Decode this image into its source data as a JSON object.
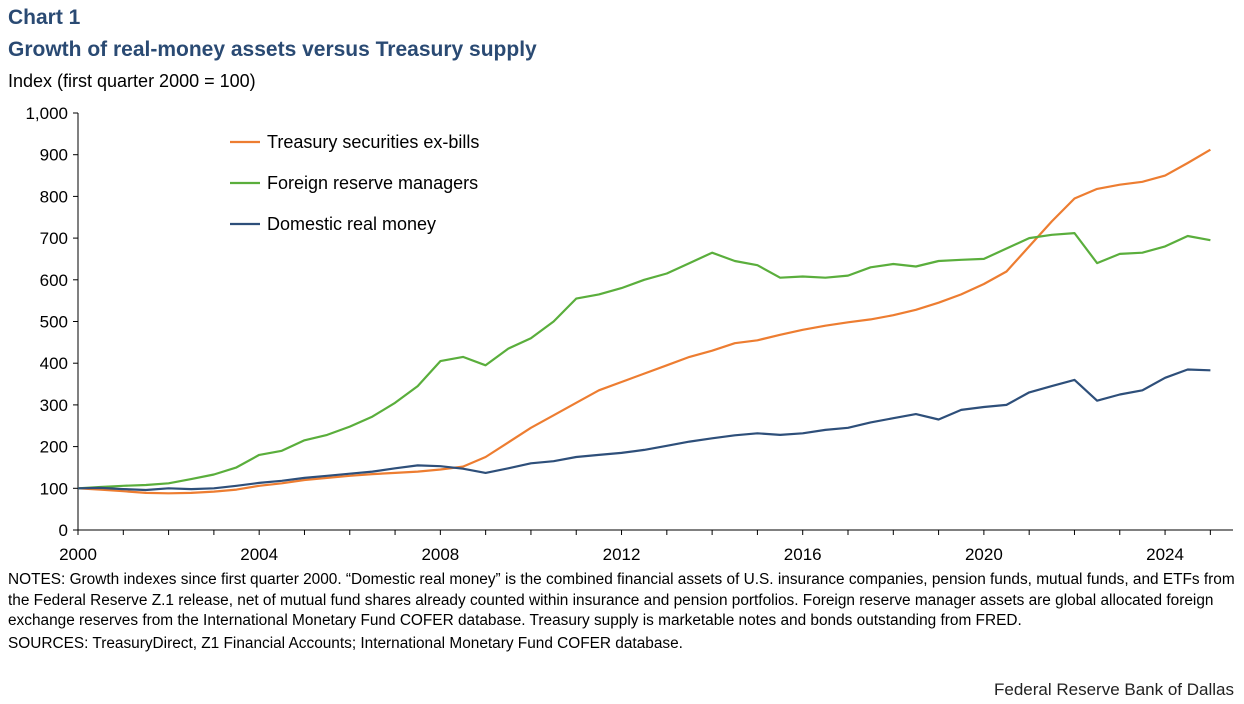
{
  "chart_number": "Chart 1",
  "title": "Growth of real-money assets versus Treasury supply",
  "unit_label": "Index (first quarter 2000 = 100)",
  "notes": "NOTES: Growth indexes since first quarter 2000. “Domestic real money” is the combined financial assets of U.S. insurance companies, pension funds, mutual funds, and ETFs from the Federal Reserve Z.1 release, net of mutual fund shares already counted within insurance and pension portfolios. Foreign reserve manager assets are global allocated foreign exchange reserves from the International Monetary Fund COFER database. Treasury supply is marketable notes and bonds outstanding from FRED.",
  "sources": "SOURCES: TreasuryDirect, Z1 Financial Accounts; International Monetary Fund COFER database.",
  "credit": "Federal Reserve Bank of Dallas",
  "chart_data": {
    "type": "line",
    "title": "Growth of real-money assets versus Treasury supply",
    "ylabel": "Index (first quarter 2000 = 100)",
    "xlim": [
      2000,
      2025.5
    ],
    "ylim": [
      0,
      1000
    ],
    "x_ticks": [
      2000,
      2004,
      2008,
      2012,
      2016,
      2020,
      2024
    ],
    "y_ticks": [
      0,
      100,
      200,
      300,
      400,
      500,
      600,
      700,
      800,
      900,
      1000
    ],
    "y_tick_labels": [
      "0",
      "100",
      "200",
      "300",
      "400",
      "500",
      "600",
      "700",
      "800",
      "900",
      "1,000"
    ],
    "grid": false,
    "legend_position": "top-left",
    "series": [
      {
        "name": "Treasury securities ex-bills",
        "color": "#ed7d31",
        "points": [
          [
            2000,
            100
          ],
          [
            2000.5,
            97
          ],
          [
            2001,
            93
          ],
          [
            2001.5,
            89
          ],
          [
            2002,
            88
          ],
          [
            2002.5,
            89
          ],
          [
            2003,
            92
          ],
          [
            2003.5,
            97
          ],
          [
            2004,
            106
          ],
          [
            2004.5,
            112
          ],
          [
            2005,
            120
          ],
          [
            2005.5,
            125
          ],
          [
            2006,
            130
          ],
          [
            2006.5,
            134
          ],
          [
            2007,
            137
          ],
          [
            2007.5,
            140
          ],
          [
            2008,
            145
          ],
          [
            2008.5,
            152
          ],
          [
            2009,
            175
          ],
          [
            2009.5,
            210
          ],
          [
            2010,
            245
          ],
          [
            2010.5,
            275
          ],
          [
            2011,
            305
          ],
          [
            2011.5,
            335
          ],
          [
            2012,
            355
          ],
          [
            2012.5,
            375
          ],
          [
            2013,
            395
          ],
          [
            2013.5,
            415
          ],
          [
            2014,
            430
          ],
          [
            2014.5,
            448
          ],
          [
            2015,
            455
          ],
          [
            2015.5,
            468
          ],
          [
            2016,
            480
          ],
          [
            2016.5,
            490
          ],
          [
            2017,
            498
          ],
          [
            2017.5,
            505
          ],
          [
            2018,
            515
          ],
          [
            2018.5,
            528
          ],
          [
            2019,
            545
          ],
          [
            2019.5,
            565
          ],
          [
            2020,
            590
          ],
          [
            2020.5,
            620
          ],
          [
            2021,
            680
          ],
          [
            2021.5,
            740
          ],
          [
            2022,
            795
          ],
          [
            2022.5,
            818
          ],
          [
            2023,
            828
          ],
          [
            2023.5,
            835
          ],
          [
            2024,
            850
          ],
          [
            2024.5,
            880
          ],
          [
            2025,
            912
          ]
        ]
      },
      {
        "name": "Foreign reserve managers",
        "color": "#5aae3c",
        "points": [
          [
            2000,
            100
          ],
          [
            2000.5,
            103
          ],
          [
            2001,
            106
          ],
          [
            2001.5,
            108
          ],
          [
            2002,
            112
          ],
          [
            2002.5,
            122
          ],
          [
            2003,
            133
          ],
          [
            2003.5,
            150
          ],
          [
            2004,
            180
          ],
          [
            2004.5,
            190
          ],
          [
            2005,
            215
          ],
          [
            2005.5,
            228
          ],
          [
            2006,
            248
          ],
          [
            2006.5,
            272
          ],
          [
            2007,
            305
          ],
          [
            2007.5,
            345
          ],
          [
            2008,
            405
          ],
          [
            2008.5,
            415
          ],
          [
            2009,
            395
          ],
          [
            2009.5,
            435
          ],
          [
            2010,
            460
          ],
          [
            2010.5,
            500
          ],
          [
            2011,
            555
          ],
          [
            2011.5,
            565
          ],
          [
            2012,
            580
          ],
          [
            2012.5,
            600
          ],
          [
            2013,
            615
          ],
          [
            2013.5,
            640
          ],
          [
            2014,
            665
          ],
          [
            2014.5,
            645
          ],
          [
            2015,
            635
          ],
          [
            2015.5,
            605
          ],
          [
            2016,
            608
          ],
          [
            2016.5,
            605
          ],
          [
            2017,
            610
          ],
          [
            2017.5,
            630
          ],
          [
            2018,
            638
          ],
          [
            2018.5,
            632
          ],
          [
            2019,
            645
          ],
          [
            2019.5,
            648
          ],
          [
            2020,
            650
          ],
          [
            2020.5,
            675
          ],
          [
            2021,
            700
          ],
          [
            2021.5,
            708
          ],
          [
            2022,
            712
          ],
          [
            2022.5,
            640
          ],
          [
            2023,
            662
          ],
          [
            2023.5,
            665
          ],
          [
            2024,
            680
          ],
          [
            2024.5,
            705
          ],
          [
            2025,
            695
          ]
        ]
      },
      {
        "name": "Domestic real money",
        "color": "#2e4f7a",
        "points": [
          [
            2000,
            100
          ],
          [
            2000.5,
            101
          ],
          [
            2001,
            98
          ],
          [
            2001.5,
            96
          ],
          [
            2002,
            100
          ],
          [
            2002.5,
            98
          ],
          [
            2003,
            100
          ],
          [
            2003.5,
            106
          ],
          [
            2004,
            113
          ],
          [
            2004.5,
            118
          ],
          [
            2005,
            125
          ],
          [
            2005.5,
            130
          ],
          [
            2006,
            135
          ],
          [
            2006.5,
            140
          ],
          [
            2007,
            148
          ],
          [
            2007.5,
            155
          ],
          [
            2008,
            153
          ],
          [
            2008.5,
            147
          ],
          [
            2009,
            137
          ],
          [
            2009.5,
            148
          ],
          [
            2010,
            160
          ],
          [
            2010.5,
            165
          ],
          [
            2011,
            175
          ],
          [
            2011.5,
            180
          ],
          [
            2012,
            185
          ],
          [
            2012.5,
            192
          ],
          [
            2013,
            202
          ],
          [
            2013.5,
            212
          ],
          [
            2014,
            220
          ],
          [
            2014.5,
            227
          ],
          [
            2015,
            232
          ],
          [
            2015.5,
            228
          ],
          [
            2016,
            232
          ],
          [
            2016.5,
            240
          ],
          [
            2017,
            245
          ],
          [
            2017.5,
            258
          ],
          [
            2018,
            268
          ],
          [
            2018.5,
            278
          ],
          [
            2019,
            265
          ],
          [
            2019.5,
            288
          ],
          [
            2020,
            295
          ],
          [
            2020.5,
            300
          ],
          [
            2021,
            330
          ],
          [
            2021.5,
            345
          ],
          [
            2022,
            360
          ],
          [
            2022.5,
            310
          ],
          [
            2023,
            325
          ],
          [
            2023.5,
            335
          ],
          [
            2024,
            365
          ],
          [
            2024.5,
            385
          ],
          [
            2025,
            383
          ]
        ]
      }
    ]
  }
}
